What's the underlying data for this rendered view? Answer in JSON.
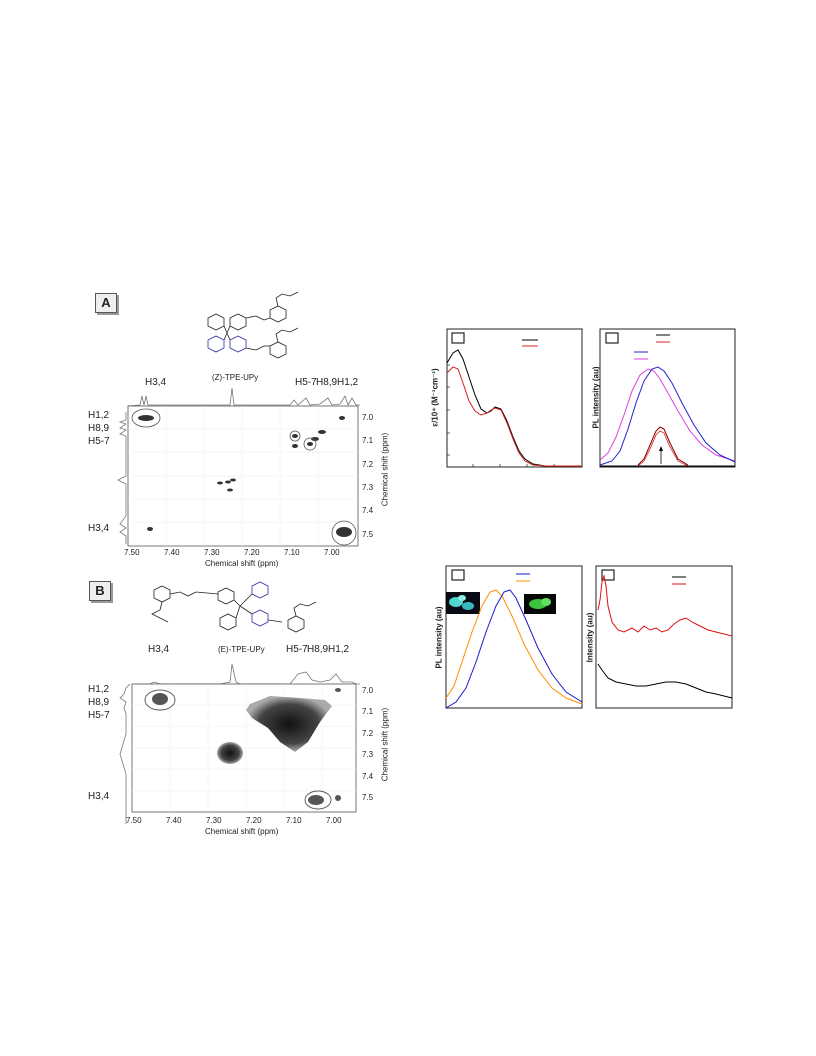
{
  "panelA": {
    "label": "A",
    "compound": "(Z)-TPE-UPy",
    "top_labels": [
      "H3,4",
      "H5-7",
      "H8,9",
      "H1,2"
    ],
    "left_labels": [
      "H1,2",
      "H8,9",
      "H5-7",
      "H3,4"
    ],
    "xlabel": "Chemical shift (ppm)",
    "ylabel": "Chemical shift (ppm)",
    "xticks": [
      "7.50",
      "7.40",
      "7.30",
      "7.20",
      "7.10",
      "7.00"
    ],
    "yticks": [
      "7.0",
      "7.1",
      "7.2",
      "7.3",
      "7.4",
      "7.5"
    ]
  },
  "panelB": {
    "label": "B",
    "compound": "(E)-TPE-UPy",
    "top_labels": [
      "H3,4",
      "H5-7",
      "H8,9",
      "H1,2"
    ],
    "left_labels": [
      "H1,2",
      "H8,9",
      "H5-7",
      "H3,4"
    ],
    "xlabel": "Chemical shift (ppm)",
    "ylabel": "Chemical shift (ppm)",
    "xticks": [
      "7.50",
      "7.40",
      "7.30",
      "7.20",
      "7.10",
      "7.00"
    ],
    "yticks": [
      "7.0",
      "7.1",
      "7.2",
      "7.3",
      "7.4",
      "7.5"
    ]
  },
  "chart_data": [
    {
      "type": "line",
      "ylabel": "ε/10⁴ (M⁻¹cm⁻¹)",
      "series_colors": [
        "#000000",
        "#d62020"
      ]
    },
    {
      "type": "line",
      "ylabel": "PL intensity (au)",
      "series_colors": [
        "#000000",
        "#d62020",
        "#2020d0",
        "#e040e0",
        "#8b0000"
      ]
    },
    {
      "type": "line",
      "ylabel": "PL intensity (au)",
      "series_colors": [
        "#1a1acc",
        "#ff8c00"
      ]
    },
    {
      "type": "line",
      "ylabel": "Intensity (au)",
      "series_colors": [
        "#000000",
        "#e01010"
      ]
    }
  ]
}
